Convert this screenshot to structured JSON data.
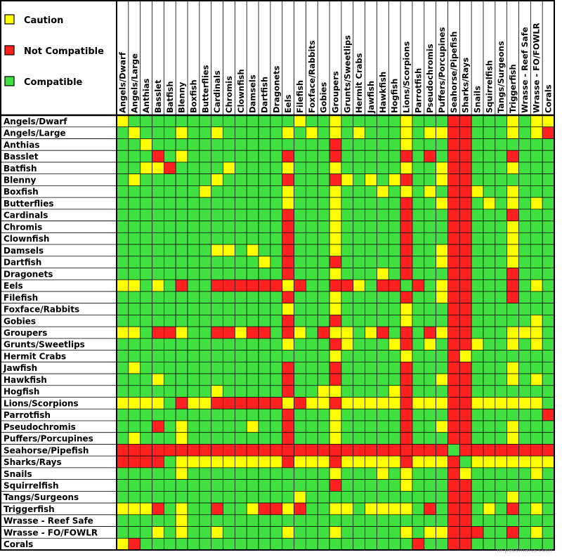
{
  "chart_data": {
    "type": "heatmap",
    "legend": [
      {
        "code": "Y",
        "label": "Caution",
        "color": "#ffff00"
      },
      {
        "code": "R",
        "label": "Not Compatible",
        "color": "#ff2020"
      },
      {
        "code": "G",
        "label": "Compatible",
        "color": "#40e040"
      }
    ],
    "columns": [
      "Angels/Dwarf",
      "Angels/Large",
      "Anthias",
      "Basslet",
      "Batfish",
      "Blenny",
      "Boxfish",
      "Butterflies",
      "Cardinals",
      "Chromis",
      "Clownfish",
      "Damsels",
      "Dartfish",
      "Dragonets",
      "Eels",
      "Filefish",
      "Foxface/Rabbits",
      "Gobies",
      "Groupers",
      "Grunts/Sweetlips",
      "Hermit Crabs",
      "Jawfish",
      "Hawkfish",
      "Hogfish",
      "Lions/Scorpions",
      "Parrotfish",
      "Pseudochromis",
      "Puffers/Porcupines",
      "Seahorse/Pipefish",
      "Sharks/Rays",
      "Snails",
      "Squirrelfish",
      "Tangs/Surgeons",
      "Triggerfish",
      "Wrasse - Reef Safe",
      "Wrasse - FO/FOWLR",
      "Corals"
    ],
    "rows": [
      "Angels/Dwarf",
      "Angels/Large",
      "Anthias",
      "Basslet",
      "Batfish",
      "Blenny",
      "Boxfish",
      "Butterflies",
      "Cardinals",
      "Chromis",
      "Clownfish",
      "Damsels",
      "Dartfish",
      "Dragonets",
      "Eels",
      "Filefish",
      "Foxface/Rabbits",
      "Gobies",
      "Groupers",
      "Grunts/Sweetlips",
      "Hermit Crabs",
      "Jawfish",
      "Hawkfish",
      "Hogfish",
      "Lions/Scorpions",
      "Parrotfish",
      "Pseudochromis",
      "Puffers/Porcupines",
      "Seahorse/Pipefish",
      "Sharks/Rays",
      "Snails",
      "Squirrelfish",
      "Tangs/Surgeons",
      "Triggerfish",
      "Wrasse - Reef Safe",
      "Wrasse - FO/FOWLR",
      "Corals"
    ],
    "cells": [
      "YGGGGGGGGGGGGGGYGGYGGGGGYGGGRRGGGYGYY",
      "GYGGGYGGYGGGGGYGYGYGYGGGYGYYRRGGGYGYR",
      "GGYGGGGGGGGGGGGGGGRGGGGGYGGGRRGGGGGGG",
      "GGGRGYGGGGGGGGRGGGRGGGGGRGRGRRGGGRGGG",
      "GGYYRGGGGYGGGGYGGGYGGGGGYGGYRRGGGYGGG",
      "GYGGGGGGYGGGGGRGGGRYGYGYRGGYRRGGGGGGG",
      "GGGGGGGYGGGGGGYGGGYGGGYGYGYGRRYGGYGGG",
      "GGGGGGGGGGGGGGYGGGYGGGGGRGGYRRGYGYGYG",
      "GGGGGGGGGGGGGGRGGGYGGGGGRGGGRRGGGRGGG",
      "GGGGGGGGGGGGGGRGGGYGGGGGRGGGRRGGGYGGG",
      "GGGGGGGGGGGGGGRGGGYGGGGGRGGGRRGGGYGGG",
      "GGGGGGGGYYGYGGRGGGYGGGGGRGGYRRGGGYGGG",
      "GGGGGGGGGGGGYGRGGGRGGGGGRGGYRRGGGYGGG",
      "GGGGGGGGGGGGGGRGGGYGGGYGRGGGRRGGGRGGG",
      "YYGYGRGGRRRRRRYRGGRRYGRRGRGYRRGGGRGYG",
      "GGGGGGGGGGGGGGRGGGYGGGGGRGGYRRGGGRGGG",
      "GGGGGGGGGGGGGGYGGGYGGGGGYGGGRRGGGGGGG",
      "GGGGGGGGGGGGGGRGGGRGGGGGYGGGRRGGGGGYG",
      "YYGRRYGGRRYRRGRYGRYYGYRGRGRYRRGGGYYYG",
      "GGGGGGGGGGGGGGYGGGRYGGGYRGYGRRYGGYGYG",
      "GGGGGGGGGGGGGGGGGGYGGGGGYGGGRYGGGGGGG",
      "GYGGGGGGGGGGGGRGGGRGGGGGRGGGRRGGGYGGG",
      "GGGYGGGGGGGGGGRGGGRGGGGGRGGYRRGGGYGYG",
      "GGGGGGGGYGGGGGRGGYYGGGGYRGGGRRGGGGGGG",
      "YYYYGRYYRRRRRRYRYYRYYYYYRYYYRRYYYYYYG",
      "GGGGGGGGGGGGGGRGGGYGGGGGRGGGRRGGGGGGR",
      "GGGRGYGGGGGYGGRGGGYGGGGGRGGYRRGGGYGGG",
      "GYGGGYGGGGGGGGRGGGYGGGGGRGGGRRGGGYGGG",
      "RRRRRRRRRRRRRRRRRRRRRRRRRRRRGRRRRRRRR",
      "RRRRGYYYYYYYYYRYYYRYYYYYRYYYRGYYYYYYY",
      "GGGGGYGGGGGGGGGGGGYGGGYGYGGGRYGGGGGYG",
      "GGGGGGGGGGGGGGGGGGRGGGGGYGGGRRGGGGGGG",
      "GGGGGGGGGGGGGGGYGGGGGGGGGGGGRRGGGYGGG",
      "YYYRGYGGRGGYRRYRGGYYGYYYYGRGRRGYGRGYG",
      "GGGGGYGGGGGGGGGGGGGGGGGGGGGGRRGGGGGGG",
      "GGGYGYGGYGGGGGYGGGYGGGGGYGYYRRRGGRGYG",
      "YRGGGGGGGGGGGGGGGGGGGGGGGRGGRRGGGGGGG"
    ]
  },
  "watermark": "nl.petsmarts.com"
}
